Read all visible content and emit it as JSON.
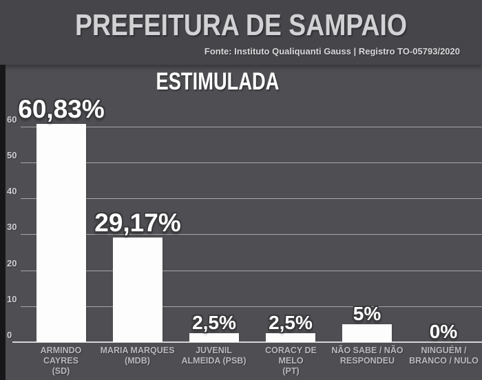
{
  "header": {
    "title": "PREFEITURA DE SAMPAIO",
    "source": "Fonte: Instituto Qualiquanti Gauss | Registro TO-05793/2020"
  },
  "chart_title": "ESTIMULADA",
  "colors": {
    "header_bg": "#46464a",
    "chart_bg": "#4f4f53",
    "bar": "#fdfdfd",
    "grid": "#9b9b9e",
    "axis_text": "#cfcfd2",
    "category_text": "#b8b8bc",
    "value_text": "#ffffff",
    "title_text": "#d2d2d4"
  },
  "chart_data": {
    "type": "bar",
    "title": "ESTIMULADA",
    "categories": [
      "ARMINDO CAYRES (SD)",
      "MARIA MARQUES (MDB)",
      "JUVENIL ALMEIDA (PSB)",
      "CORACY DE MELO (PT)",
      "NÃO SABE / NÃO RESPONDEU",
      "NINGUÉM / BRANCO / NULO"
    ],
    "category_lines": [
      [
        "ARMINDO CAYRES",
        "(SD)"
      ],
      [
        "MARIA MARQUES",
        "(MDB)"
      ],
      [
        "JUVENIL",
        "ALMEIDA (PSB)"
      ],
      [
        "CORACY DE MELO",
        "(PT)"
      ],
      [
        "NÃO SABE / NÃO",
        "RESPONDEU"
      ],
      [
        "NINGUÉM /",
        "BRANCO / NULO"
      ]
    ],
    "values": [
      60.83,
      29.17,
      2.5,
      2.5,
      5,
      0
    ],
    "value_labels": [
      "60,83%",
      "29,17%",
      "2,5%",
      "2,5%",
      "5%",
      "0%"
    ],
    "xlabel": "",
    "ylabel": "",
    "ylim": [
      0,
      65
    ],
    "yticks": [
      0,
      10,
      20,
      30,
      40,
      50,
      60
    ],
    "ytick_labels": [
      "0",
      "10",
      "20",
      "30",
      "40",
      "50",
      "60"
    ],
    "grid": true,
    "legend": false,
    "bar_color": "#fdfdfd"
  }
}
